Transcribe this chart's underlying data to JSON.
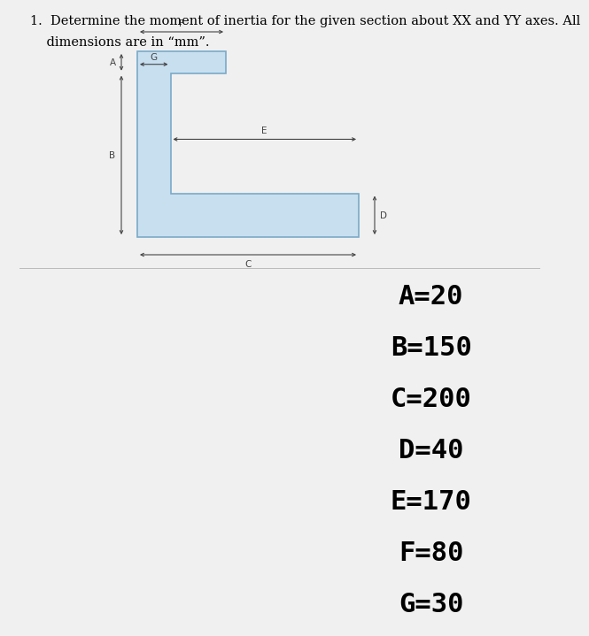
{
  "title_line1": "1.  Determine the moment of inertia for the given section about XX and YY axes. All",
  "title_line2": "    dimensions are in “mm”.",
  "A": 20,
  "B": 150,
  "C": 200,
  "D": 40,
  "E": 170,
  "F": 80,
  "G": 30,
  "shape_fill": "#c8dff0",
  "shape_edge": "#7aaac8",
  "dim_color": "#444444",
  "bg_color": "#f0f0f0",
  "white_bg": "#ffffff",
  "var_labels": [
    "A=20",
    "B=150",
    "C=200",
    "D=40",
    "E=170",
    "F=80",
    "G=30"
  ],
  "var_fontsize": 22,
  "title_fontsize": 10.5
}
